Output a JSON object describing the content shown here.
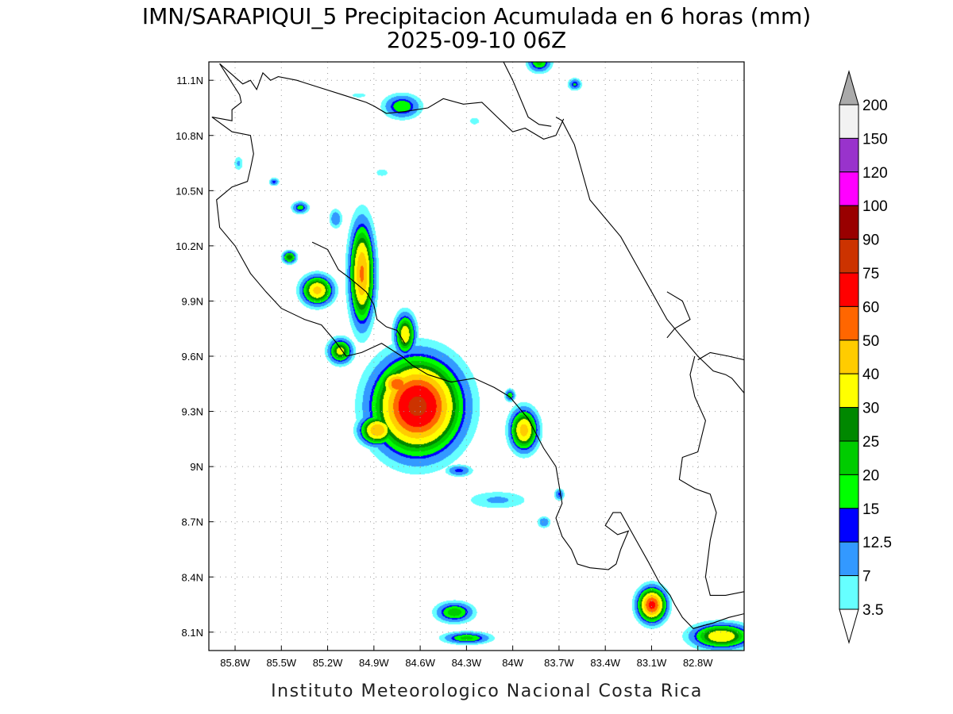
{
  "title_line1": "IMN/SARAPIQUI_5 Precipitacion Acumulada en 6 horas (mm)",
  "title_line2": "2025-09-10 06Z",
  "footer": "Instituto Meteorologico Nacional Costa Rica",
  "map": {
    "lon_range": [
      -85.97,
      -82.5
    ],
    "lat_range": [
      8.0,
      11.2
    ],
    "lon_ticks": [
      {
        "value": -85.8,
        "label": "85.8W"
      },
      {
        "value": -85.5,
        "label": "85.5W"
      },
      {
        "value": -85.2,
        "label": "85.2W"
      },
      {
        "value": -84.9,
        "label": "84.9W"
      },
      {
        "value": -84.6,
        "label": "84.6W"
      },
      {
        "value": -84.3,
        "label": "84.3W"
      },
      {
        "value": -84.0,
        "label": "84W"
      },
      {
        "value": -83.7,
        "label": "83.7W"
      },
      {
        "value": -83.4,
        "label": "83.4W"
      },
      {
        "value": -83.1,
        "label": "83.1W"
      },
      {
        "value": -82.8,
        "label": "82.8W"
      }
    ],
    "lat_ticks": [
      {
        "value": 11.1,
        "label": "11.1N"
      },
      {
        "value": 10.8,
        "label": "10.8N"
      },
      {
        "value": 10.5,
        "label": "10.5N"
      },
      {
        "value": 10.2,
        "label": "10.2N"
      },
      {
        "value": 9.9,
        "label": "9.9N"
      },
      {
        "value": 9.6,
        "label": "9.6N"
      },
      {
        "value": 9.3,
        "label": "9.3N"
      },
      {
        "value": 9.0,
        "label": "9N"
      },
      {
        "value": 8.7,
        "label": "8.7N"
      },
      {
        "value": 8.4,
        "label": "8.4N"
      },
      {
        "value": 8.1,
        "label": "8.1N"
      }
    ]
  },
  "colorbar": {
    "levels": [
      "3.5",
      "7",
      "12.5",
      "15",
      "20",
      "25",
      "30",
      "40",
      "50",
      "60",
      "75",
      "90",
      "100",
      "120",
      "150",
      "200"
    ],
    "colors": [
      "#66ffff",
      "#3399ff",
      "#0000ff",
      "#00ff00",
      "#00cc00",
      "#008800",
      "#ffff00",
      "#ffcc00",
      "#ff6600",
      "#ff0000",
      "#cc3300",
      "#990000",
      "#ff00ff",
      "#9933cc",
      "#f2f2f2",
      "#aaaaaa"
    ]
  },
  "precip_cells": [
    {
      "lon": -84.62,
      "lat": 9.33,
      "rx": 0.24,
      "ry": 0.22,
      "peak": 80
    },
    {
      "lon": -84.75,
      "lat": 9.45,
      "rx": 0.1,
      "ry": 0.07,
      "peak": 60
    },
    {
      "lon": -84.88,
      "lat": 9.2,
      "rx": 0.1,
      "ry": 0.07,
      "peak": 50
    },
    {
      "lon": -84.45,
      "lat": 9.2,
      "rx": 0.1,
      "ry": 0.06,
      "peak": 22
    },
    {
      "lon": -84.98,
      "lat": 10.05,
      "rx": 0.07,
      "ry": 0.24,
      "peak": 52
    },
    {
      "lon": -84.7,
      "lat": 9.72,
      "rx": 0.06,
      "ry": 0.1,
      "peak": 38
    },
    {
      "lon": -85.27,
      "lat": 9.96,
      "rx": 0.09,
      "ry": 0.07,
      "peak": 44
    },
    {
      "lon": -85.12,
      "lat": 9.63,
      "rx": 0.07,
      "ry": 0.06,
      "peak": 34
    },
    {
      "lon": -85.45,
      "lat": 10.14,
      "rx": 0.04,
      "ry": 0.03,
      "peak": 30
    },
    {
      "lon": -85.38,
      "lat": 10.41,
      "rx": 0.05,
      "ry": 0.03,
      "peak": 18
    },
    {
      "lon": -85.15,
      "lat": 10.35,
      "rx": 0.04,
      "ry": 0.05,
      "peak": 12
    },
    {
      "lon": -85.55,
      "lat": 10.55,
      "rx": 0.03,
      "ry": 0.02,
      "peak": 14
    },
    {
      "lon": -84.72,
      "lat": 10.96,
      "rx": 0.11,
      "ry": 0.06,
      "peak": 20
    },
    {
      "lon": -83.83,
      "lat": 11.2,
      "rx": 0.07,
      "ry": 0.05,
      "peak": 22
    },
    {
      "lon": -83.6,
      "lat": 11.08,
      "rx": 0.04,
      "ry": 0.03,
      "peak": 16
    },
    {
      "lon": -83.93,
      "lat": 9.2,
      "rx": 0.08,
      "ry": 0.1,
      "peak": 45
    },
    {
      "lon": -84.02,
      "lat": 9.39,
      "rx": 0.03,
      "ry": 0.03,
      "peak": 20
    },
    {
      "lon": -83.7,
      "lat": 8.85,
      "rx": 0.03,
      "ry": 0.03,
      "peak": 14
    },
    {
      "lon": -84.38,
      "lat": 8.21,
      "rx": 0.11,
      "ry": 0.05,
      "peak": 24
    },
    {
      "lon": -84.3,
      "lat": 8.07,
      "rx": 0.14,
      "ry": 0.03,
      "peak": 22
    },
    {
      "lon": -84.35,
      "lat": 8.98,
      "rx": 0.08,
      "ry": 0.03,
      "peak": 14
    },
    {
      "lon": -83.1,
      "lat": 8.25,
      "rx": 0.08,
      "ry": 0.08,
      "peak": 65
    },
    {
      "lon": -82.65,
      "lat": 8.08,
      "rx": 0.17,
      "ry": 0.06,
      "peak": 40
    },
    {
      "lon": -85.0,
      "lat": 11.02,
      "rx": 0.12,
      "ry": 0.03,
      "peak": 4
    },
    {
      "lon": -84.25,
      "lat": 10.88,
      "rx": 0.05,
      "ry": 0.03,
      "peak": 5
    },
    {
      "lon": -84.85,
      "lat": 10.6,
      "rx": 0.06,
      "ry": 0.03,
      "peak": 5
    },
    {
      "lon": -84.1,
      "lat": 8.82,
      "rx": 0.2,
      "ry": 0.05,
      "peak": 8
    },
    {
      "lon": -85.78,
      "lat": 10.65,
      "rx": 0.03,
      "ry": 0.04,
      "peak": 8
    },
    {
      "lon": -83.8,
      "lat": 8.7,
      "rx": 0.04,
      "ry": 0.03,
      "peak": 12
    }
  ],
  "coastlines": [
    [
      [
        -85.9,
        11.19
      ],
      [
        -85.75,
        11.08
      ],
      [
        -85.7,
        11.1
      ],
      [
        -85.66,
        11.05
      ],
      [
        -85.62,
        11.14
      ],
      [
        -85.57,
        11.1
      ],
      [
        -85.52,
        11.12
      ],
      [
        -85.4,
        11.1
      ],
      [
        -85.25,
        11.06
      ],
      [
        -85.1,
        11.02
      ],
      [
        -84.95,
        10.98
      ],
      [
        -84.9,
        10.96
      ],
      [
        -84.82,
        10.92
      ],
      [
        -84.7,
        10.93
      ],
      [
        -84.55,
        10.95
      ],
      [
        -84.45,
        11.0
      ],
      [
        -84.32,
        10.97
      ],
      [
        -84.2,
        10.98
      ],
      [
        -84.1,
        10.9
      ],
      [
        -84.0,
        10.82
      ],
      [
        -83.92,
        10.84
      ],
      [
        -83.8,
        10.78
      ],
      [
        -83.72,
        10.8
      ],
      [
        -83.67,
        10.89
      ]
    ],
    [
      [
        -85.9,
        11.19
      ],
      [
        -85.77,
        11.02
      ],
      [
        -85.76,
        10.98
      ],
      [
        -85.82,
        10.94
      ],
      [
        -85.82,
        10.88
      ],
      [
        -85.95,
        10.9
      ],
      [
        -85.82,
        10.82
      ],
      [
        -85.7,
        10.8
      ],
      [
        -85.68,
        10.7
      ],
      [
        -85.7,
        10.62
      ],
      [
        -85.72,
        10.55
      ],
      [
        -85.82,
        10.52
      ],
      [
        -85.92,
        10.45
      ],
      [
        -85.9,
        10.3
      ],
      [
        -85.8,
        10.2
      ],
      [
        -85.7,
        10.05
      ],
      [
        -85.6,
        9.95
      ],
      [
        -85.5,
        9.86
      ],
      [
        -85.35,
        9.8
      ],
      [
        -85.24,
        9.77
      ],
      [
        -85.15,
        9.68
      ],
      [
        -85.08,
        9.6
      ],
      [
        -84.98,
        9.62
      ],
      [
        -84.85,
        9.67
      ],
      [
        -84.72,
        9.6
      ],
      [
        -84.65,
        9.55
      ],
      [
        -84.55,
        9.5
      ],
      [
        -84.4,
        9.46
      ],
      [
        -84.25,
        9.48
      ],
      [
        -84.12,
        9.43
      ],
      [
        -84.02,
        9.38
      ],
      [
        -83.9,
        9.26
      ],
      [
        -83.8,
        9.1
      ],
      [
        -83.72,
        9.0
      ],
      [
        -83.7,
        8.9
      ],
      [
        -83.68,
        8.8
      ],
      [
        -83.72,
        8.72
      ],
      [
        -83.68,
        8.62
      ],
      [
        -83.62,
        8.55
      ],
      [
        -83.58,
        8.47
      ],
      [
        -83.5,
        8.45
      ],
      [
        -83.38,
        8.44
      ],
      [
        -83.33,
        8.47
      ],
      [
        -83.3,
        8.55
      ],
      [
        -83.25,
        8.65
      ],
      [
        -83.32,
        8.63
      ],
      [
        -83.4,
        8.68
      ],
      [
        -83.35,
        8.75
      ],
      [
        -83.3,
        8.75
      ],
      [
        -83.2,
        8.6
      ],
      [
        -83.12,
        8.48
      ],
      [
        -83.05,
        8.37
      ],
      [
        -82.98,
        8.3
      ],
      [
        -82.95,
        8.25
      ],
      [
        -82.9,
        8.18
      ],
      [
        -82.83,
        8.12
      ],
      [
        -82.7,
        8.15
      ],
      [
        -82.6,
        8.18
      ],
      [
        -82.5,
        8.2
      ]
    ],
    [
      [
        -85.3,
        10.22
      ],
      [
        -85.2,
        10.18
      ],
      [
        -85.13,
        10.07
      ],
      [
        -85.05,
        10.02
      ],
      [
        -84.95,
        9.95
      ],
      [
        -84.9,
        9.88
      ],
      [
        -84.88,
        9.8
      ],
      [
        -84.82,
        9.76
      ],
      [
        -84.75,
        9.74
      ],
      [
        -84.7,
        9.67
      ]
    ],
    [
      [
        -83.72,
        10.9
      ],
      [
        -83.68,
        10.88
      ],
      [
        -83.6,
        10.75
      ],
      [
        -83.55,
        10.6
      ],
      [
        -83.5,
        10.45
      ],
      [
        -83.4,
        10.35
      ],
      [
        -83.3,
        10.25
      ],
      [
        -83.2,
        10.1
      ],
      [
        -83.1,
        9.95
      ],
      [
        -83.0,
        9.8
      ],
      [
        -82.9,
        9.7
      ],
      [
        -82.8,
        9.6
      ],
      [
        -82.7,
        9.52
      ],
      [
        -82.62,
        9.5
      ],
      [
        -82.58,
        9.48
      ],
      [
        -82.5,
        9.4
      ]
    ],
    [
      [
        -84.06,
        11.2
      ],
      [
        -84.0,
        11.1
      ],
      [
        -83.95,
        11.0
      ],
      [
        -83.9,
        10.9
      ],
      [
        -83.83,
        10.86
      ],
      [
        -83.75,
        10.85
      ]
    ],
    [
      [
        -83.0,
        9.95
      ],
      [
        -82.9,
        9.9
      ],
      [
        -82.85,
        9.8
      ],
      [
        -82.95,
        9.75
      ],
      [
        -83.0,
        9.7
      ]
    ],
    [
      [
        -82.5,
        9.58
      ],
      [
        -82.6,
        9.6
      ],
      [
        -82.72,
        9.62
      ],
      [
        -82.8,
        9.58
      ]
    ],
    [
      [
        -82.82,
        9.6
      ],
      [
        -82.85,
        9.5
      ],
      [
        -82.82,
        9.38
      ],
      [
        -82.75,
        9.25
      ],
      [
        -82.8,
        9.08
      ],
      [
        -82.9,
        9.05
      ],
      [
        -82.92,
        8.93
      ],
      [
        -82.82,
        8.88
      ],
      [
        -82.72,
        8.85
      ],
      [
        -82.68,
        8.75
      ],
      [
        -82.72,
        8.6
      ],
      [
        -82.75,
        8.4
      ],
      [
        -82.72,
        8.3
      ],
      [
        -82.62,
        8.3
      ],
      [
        -82.5,
        8.32
      ]
    ]
  ]
}
